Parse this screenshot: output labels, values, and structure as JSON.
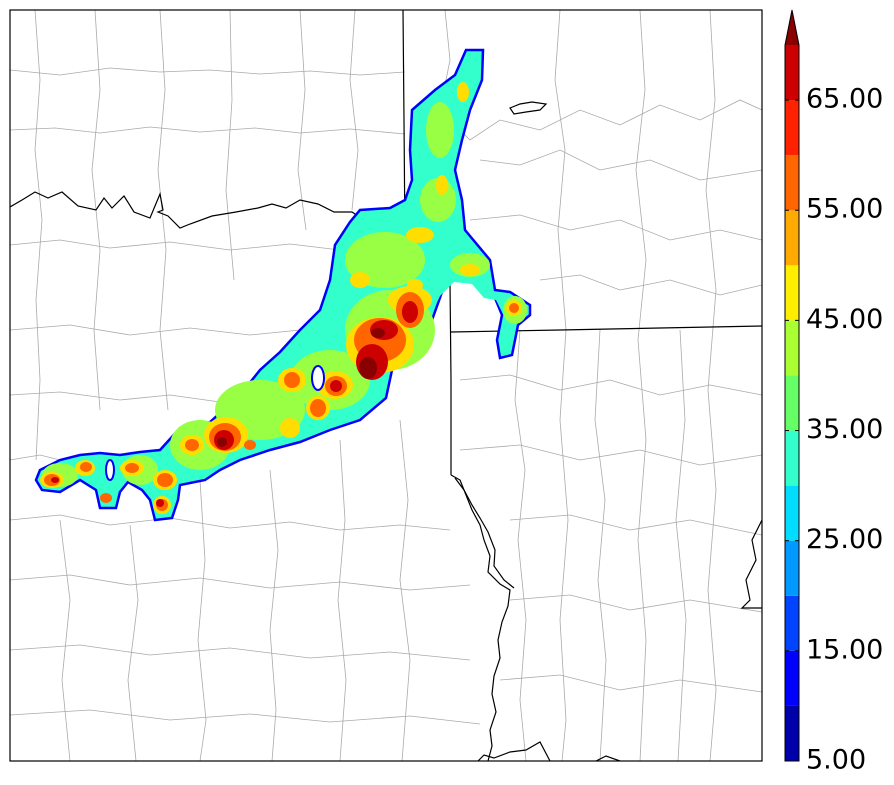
{
  "colorbar": {
    "tick_labels": [
      "5.00",
      "15.00",
      "25.00",
      "35.00",
      "45.00",
      "55.00",
      "65.00"
    ],
    "levels": [
      5,
      10,
      15,
      20,
      25,
      30,
      35,
      40,
      45,
      50,
      55,
      60,
      65,
      70
    ],
    "extend": "max",
    "colors": [
      "#0000aa",
      "#0000ff",
      "#0044ff",
      "#0099ff",
      "#00ddff",
      "#33ffcc",
      "#66ff66",
      "#aaff33",
      "#ffee00",
      "#ffaa00",
      "#ff6600",
      "#ff2200",
      "#cc0000",
      "#880000"
    ]
  },
  "map": {
    "boundary_color": "#000000",
    "county_color": "#aaaaaa",
    "cell_colors": {
      "edge": "#0000ff",
      "low": "#33ffcc",
      "mid": "#99ff44",
      "high": "#ffdd00",
      "very_high": "#ff6600",
      "peak": "#cc0000",
      "core": "#880000"
    }
  }
}
